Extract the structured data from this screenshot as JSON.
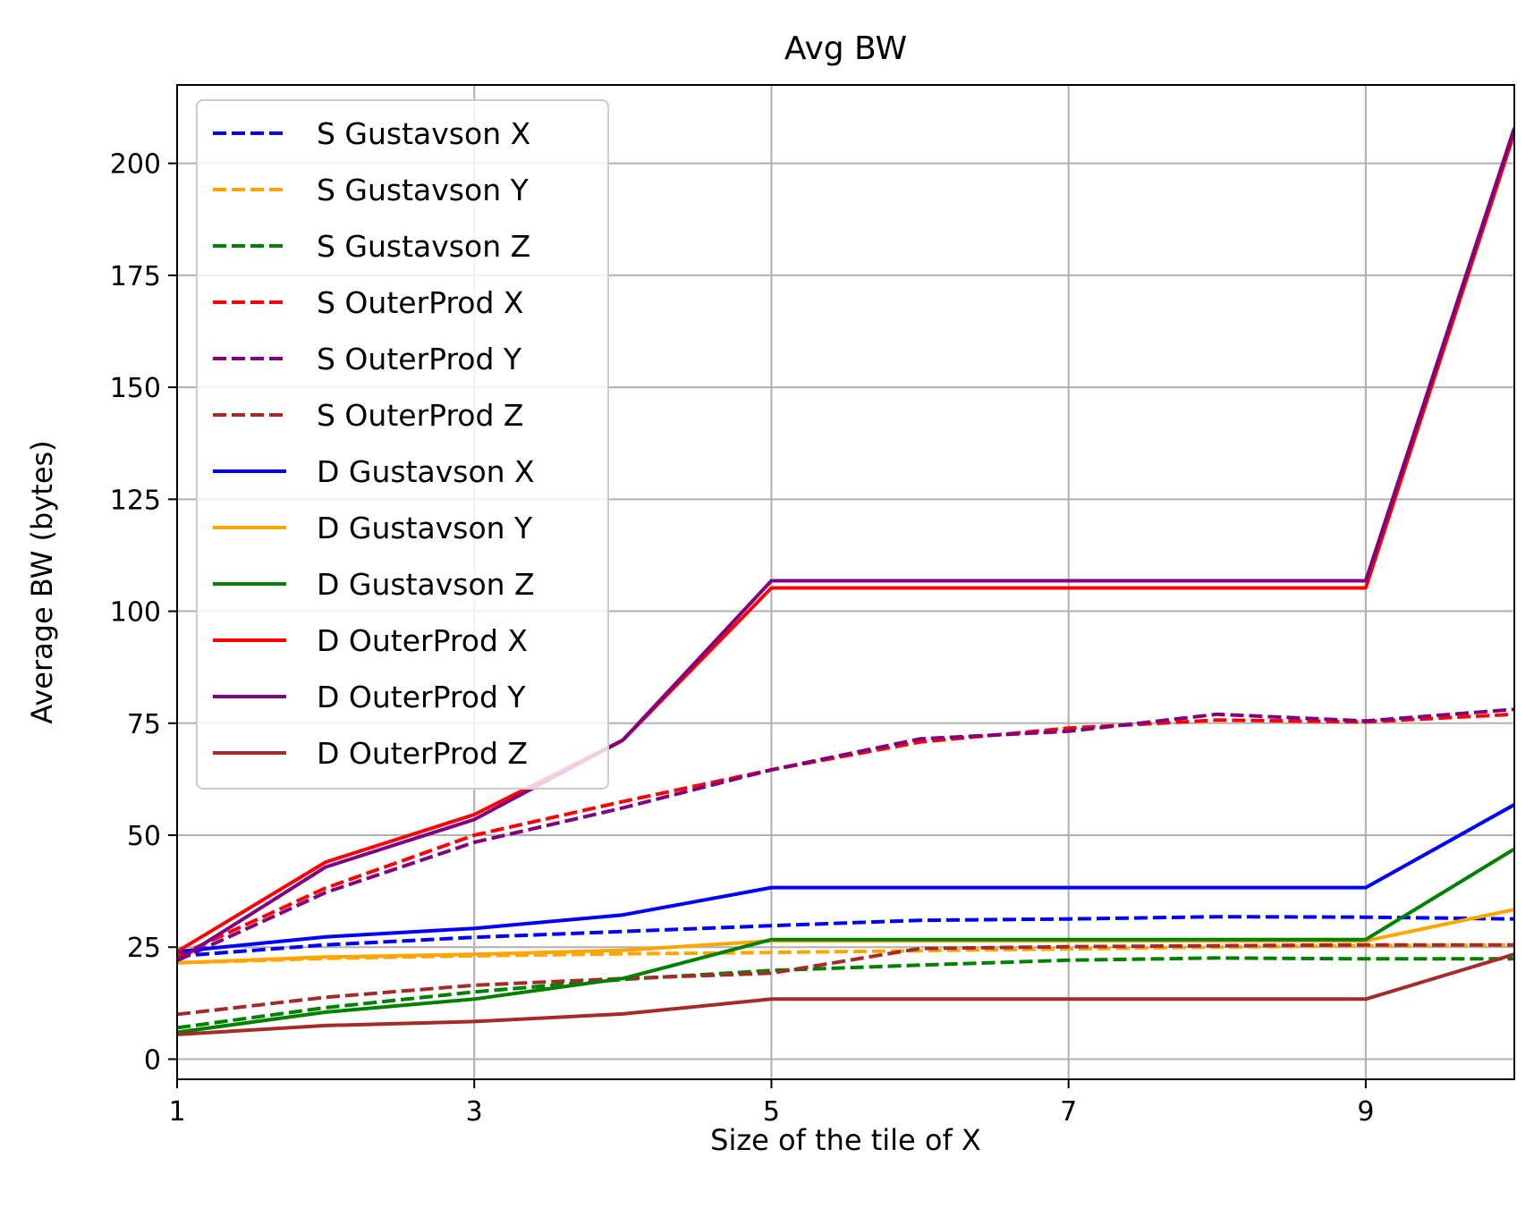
{
  "chart_data": {
    "type": "line",
    "title": "Avg BW",
    "xlabel": "Size of the tile of X",
    "ylabel": "Average BW (bytes)",
    "xlim": [
      1,
      10
    ],
    "ylim": [
      -4.5,
      217.5
    ],
    "xticks": [
      1,
      3,
      5,
      7,
      9
    ],
    "yticks": [
      0,
      25,
      50,
      75,
      100,
      125,
      150,
      175,
      200
    ],
    "grid": true,
    "legend_position": "upper-left",
    "x": [
      1,
      2,
      3,
      4,
      5,
      6,
      7,
      8,
      9,
      10
    ],
    "series": [
      {
        "name": "S Gustavson X",
        "style": "dashed",
        "color": "#0000ff",
        "values": [
          23,
          25.5,
          27.2,
          28.5,
          29.8,
          31,
          31.3,
          31.8,
          31.7,
          31.3
        ]
      },
      {
        "name": "S Gustavson Y",
        "style": "dashed",
        "color": "#ffa500",
        "values": [
          21.5,
          22.5,
          23.1,
          23.5,
          23.8,
          24.2,
          24.6,
          25,
          25.3,
          25.5
        ]
      },
      {
        "name": "S Gustavson Z",
        "style": "dashed",
        "color": "#008000",
        "values": [
          7,
          11.5,
          15,
          17.8,
          19.8,
          21,
          22.1,
          22.6,
          22.4,
          22.4
        ]
      },
      {
        "name": "S OuterProd X",
        "style": "dashed",
        "color": "#ff0000",
        "values": [
          23,
          38.2,
          50,
          57.5,
          64.6,
          70.8,
          73.9,
          75.7,
          75.3,
          77
        ]
      },
      {
        "name": "S OuterProd Y",
        "style": "dashed",
        "color": "#800080",
        "values": [
          22,
          37.2,
          48.4,
          56.1,
          64.6,
          71.5,
          73.2,
          77,
          75.5,
          78.1
        ]
      },
      {
        "name": "S OuterProd Z",
        "style": "dashed",
        "color": "#a52a2a",
        "values": [
          10,
          13.8,
          16.5,
          18,
          19.2,
          24.7,
          25.1,
          25.3,
          25.5,
          25.5
        ]
      },
      {
        "name": "D Gustavson X",
        "style": "solid",
        "color": "#0000ff",
        "values": [
          24,
          27.3,
          29.2,
          32.2,
          38.3,
          38.3,
          38.3,
          38.3,
          38.3,
          56.8
        ]
      },
      {
        "name": "D Gustavson Y",
        "style": "solid",
        "color": "#ffa500",
        "values": [
          21.5,
          22.8,
          23.4,
          24.3,
          26.4,
          26.4,
          26.4,
          26.4,
          26.4,
          33.4
        ]
      },
      {
        "name": "D Gustavson Z",
        "style": "solid",
        "color": "#008000",
        "values": [
          6,
          10.5,
          13.4,
          18,
          26.7,
          26.7,
          26.7,
          26.7,
          26.7,
          46.9
        ]
      },
      {
        "name": "D OuterProd X",
        "style": "solid",
        "color": "#ff0000",
        "values": [
          24,
          44,
          54.6,
          71.2,
          105.2,
          105.2,
          105.2,
          105.2,
          105.2,
          206.8
        ]
      },
      {
        "name": "D OuterProd Y",
        "style": "solid",
        "color": "#800080",
        "values": [
          22,
          42.9,
          53.5,
          71.2,
          106.8,
          106.8,
          106.8,
          106.8,
          106.8,
          207.9
        ]
      },
      {
        "name": "D OuterProd Z",
        "style": "solid",
        "color": "#a52a2a",
        "values": [
          5.5,
          7.5,
          8.4,
          10.1,
          13.4,
          13.4,
          13.4,
          13.4,
          13.4,
          23.4
        ]
      }
    ]
  }
}
